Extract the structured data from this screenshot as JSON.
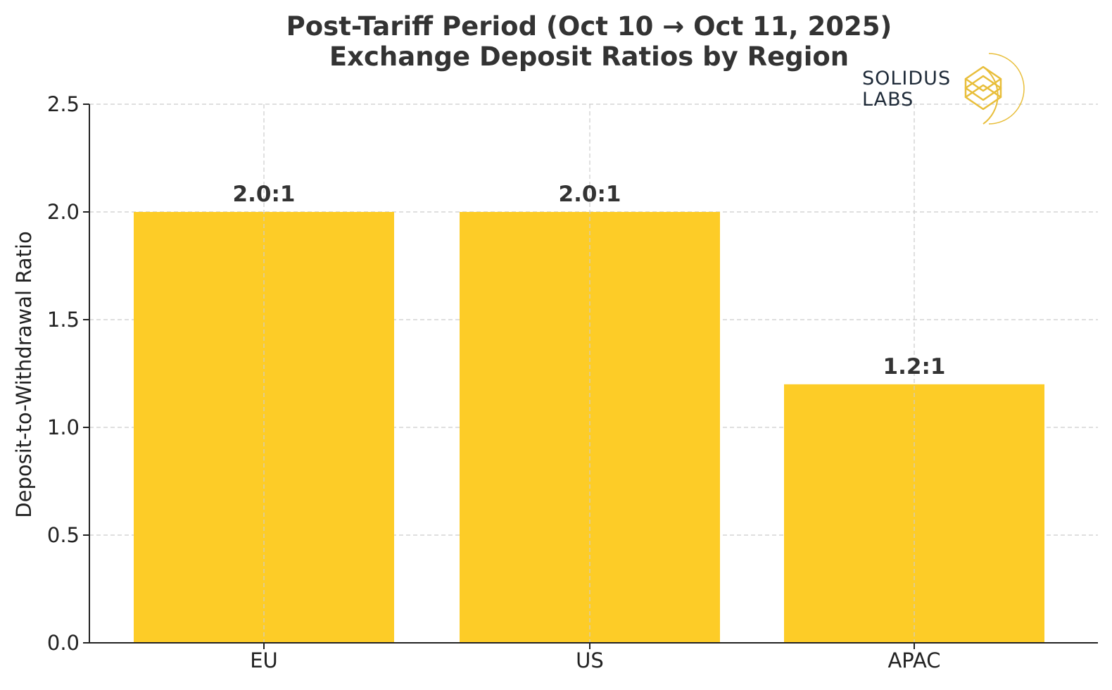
{
  "chart_data": {
    "type": "bar",
    "title_line1": "Post-Tariff Period (Oct 10 → Oct 11, 2025)",
    "title_line2": "Exchange Deposit Ratios by Region",
    "xlabel": "",
    "ylabel": "Deposit-to-Withdrawal Ratio",
    "categories": [
      "EU",
      "US",
      "APAC"
    ],
    "values": [
      2.0,
      2.0,
      1.2
    ],
    "data_labels": [
      "2.0:1",
      "2.0:1",
      "1.2:1"
    ],
    "ylim": [
      0,
      2.5
    ],
    "yticks": [
      "0.0",
      "0.5",
      "1.0",
      "1.5",
      "2.0",
      "2.5"
    ],
    "ytick_values": [
      0,
      0.5,
      1.0,
      1.5,
      2.0,
      2.5
    ],
    "grid": true,
    "bar_color": "#FDCC27"
  },
  "logo": {
    "line1": "SOLIDUS",
    "line2": "LABS",
    "color": "#E8BE3A"
  }
}
